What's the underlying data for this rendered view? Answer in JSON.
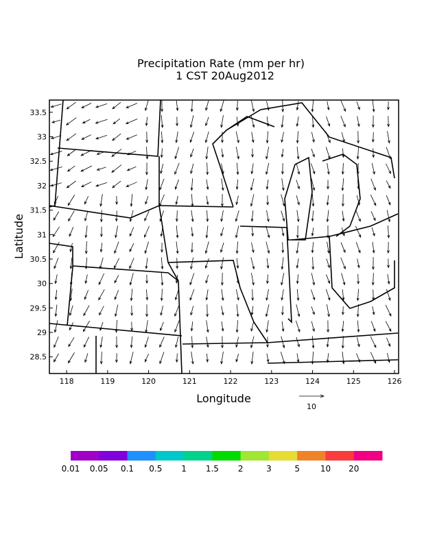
{
  "map": {
    "title": [
      "Precipitation Rate (mm per hr)",
      "1 CST 20Aug2012"
    ],
    "x_label": "Longitude",
    "y_label": "Latitude",
    "xlim": [
      117.58,
      126.1
    ],
    "ylim": [
      28.16,
      33.75
    ],
    "xticks": [
      118,
      119,
      120,
      121,
      122,
      123,
      124,
      125,
      126
    ],
    "yticks": [
      28.5,
      29,
      29.5,
      30,
      30.5,
      31,
      31.5,
      32,
      32.5,
      33,
      33.5
    ],
    "reference_vector": "10",
    "colorbar": {
      "colors": [
        "#a000c8",
        "#8200dc",
        "#1e90ff",
        "#00c8c8",
        "#00d28c",
        "#00dc00",
        "#a0e632",
        "#e6dc32",
        "#f08228",
        "#fa3c3c",
        "#f00082"
      ],
      "labels": [
        "0.01",
        "0.05",
        "0.1",
        "0.5",
        "1",
        "1.5",
        "2",
        "3",
        "5",
        "10",
        "20"
      ]
    }
  }
}
